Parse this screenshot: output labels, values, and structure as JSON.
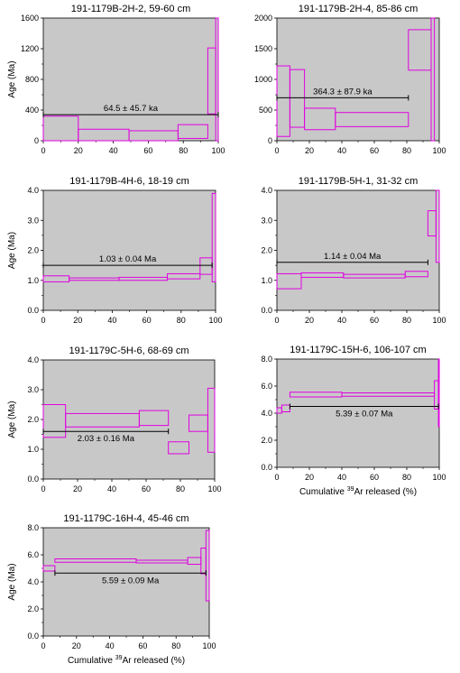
{
  "colors": {
    "panel_bg": "#c8c8c8",
    "step": "#e000e0",
    "plateau": "#000000"
  },
  "chart_data": [
    {
      "type": "step",
      "title": "191-1179B-2H-2, 59-60 cm",
      "ylabel": "Age (Ma)",
      "xlabel": "",
      "xlim": [
        0,
        100
      ],
      "ylim": [
        0,
        1600
      ],
      "xticks": [
        "0",
        "20",
        "40",
        "60",
        "80",
        "100"
      ],
      "yticks": [
        "0",
        "400",
        "800",
        "1200",
        "1600"
      ],
      "steps": [
        {
          "x0": 0,
          "x1": 20,
          "lo": 0,
          "hi": 320
        },
        {
          "x0": 20,
          "x1": 49,
          "lo": 0,
          "hi": 150
        },
        {
          "x0": 49,
          "x1": 77,
          "lo": 0,
          "hi": 130
        },
        {
          "x0": 77,
          "x1": 94,
          "lo": 30,
          "hi": 210
        },
        {
          "x0": 94,
          "x1": 98.5,
          "lo": 350,
          "hi": 1210
        },
        {
          "x0": 98.5,
          "x1": 100,
          "lo": 0,
          "hi": 1600
        }
      ],
      "plateau": {
        "label": "64.5 ± 45.7 ka",
        "value": 340,
        "x0": 0,
        "x1": 100,
        "label_pos": "above"
      }
    },
    {
      "type": "step",
      "title": "191-1179B-2H-4, 85-86 cm",
      "ylabel": "",
      "xlabel": "",
      "xlim": [
        0,
        100
      ],
      "ylim": [
        0,
        2000
      ],
      "xticks": [
        "0",
        "20",
        "40",
        "60",
        "80",
        "100"
      ],
      "yticks": [
        "0",
        "500",
        "1000",
        "1500",
        "2000"
      ],
      "steps": [
        {
          "x0": 0,
          "x1": 8,
          "lo": 70,
          "hi": 1220
        },
        {
          "x0": 8,
          "x1": 17,
          "lo": 220,
          "hi": 1160
        },
        {
          "x0": 17,
          "x1": 36,
          "lo": 180,
          "hi": 530
        },
        {
          "x0": 36,
          "x1": 81,
          "lo": 230,
          "hi": 460
        },
        {
          "x0": 81,
          "x1": 95,
          "lo": 1150,
          "hi": 1810
        },
        {
          "x0": 95,
          "x1": 97,
          "lo": 0,
          "hi": 2000
        }
      ],
      "plateau": {
        "label": "364.3 ± 87.9 ka",
        "value": 700,
        "x0": 0,
        "x1": 81,
        "label_pos": "above"
      }
    },
    {
      "type": "step",
      "title": "191-1179B-4H-6, 18-19 cm",
      "ylabel": "Age (Ma)",
      "xlabel": "",
      "xlim": [
        0,
        100
      ],
      "ylim": [
        0,
        4
      ],
      "xticks": [
        "0",
        "20",
        "40",
        "60",
        "80",
        "100"
      ],
      "yticks": [
        "0.0",
        "1.0",
        "2.0",
        "3.0",
        "4.0"
      ],
      "steps": [
        {
          "x0": 0,
          "x1": 15,
          "lo": 0.95,
          "hi": 1.15
        },
        {
          "x0": 15,
          "x1": 44,
          "lo": 1.0,
          "hi": 1.08
        },
        {
          "x0": 44,
          "x1": 72,
          "lo": 1.0,
          "hi": 1.1
        },
        {
          "x0": 72,
          "x1": 91,
          "lo": 1.05,
          "hi": 1.22
        },
        {
          "x0": 91,
          "x1": 98,
          "lo": 1.2,
          "hi": 1.75
        },
        {
          "x0": 98,
          "x1": 100,
          "lo": 0.95,
          "hi": 3.9
        }
      ],
      "plateau": {
        "label": "1.03 ± 0.04 Ma",
        "value": 1.5,
        "x0": 0,
        "x1": 98,
        "label_pos": "above"
      }
    },
    {
      "type": "step",
      "title": "191-1179B-5H-1, 31-32 cm",
      "ylabel": "",
      "xlabel": "",
      "xlim": [
        0,
        100
      ],
      "ylim": [
        0,
        4
      ],
      "xticks": [
        "0",
        "20",
        "40",
        "60",
        "80",
        "100"
      ],
      "yticks": [
        "0.0",
        "1.0",
        "2.0",
        "3.0",
        "4.0"
      ],
      "steps": [
        {
          "x0": 0,
          "x1": 15,
          "lo": 0.72,
          "hi": 1.22
        },
        {
          "x0": 15,
          "x1": 41,
          "lo": 1.1,
          "hi": 1.25
        },
        {
          "x0": 41,
          "x1": 79,
          "lo": 1.08,
          "hi": 1.2
        },
        {
          "x0": 79,
          "x1": 93,
          "lo": 1.12,
          "hi": 1.3
        },
        {
          "x0": 93,
          "x1": 98,
          "lo": 2.48,
          "hi": 3.32
        },
        {
          "x0": 98,
          "x1": 100,
          "lo": 1.6,
          "hi": 4.0
        }
      ],
      "plateau": {
        "label": "1.14 ± 0.04 Ma",
        "value": 1.6,
        "x0": 0,
        "x1": 93,
        "label_pos": "above"
      }
    },
    {
      "type": "step",
      "title": "191-1179C-5H-6, 68-69 cm",
      "ylabel": "Age (Ma)",
      "xlabel": "",
      "xlim": [
        0,
        100
      ],
      "ylim": [
        0,
        4
      ],
      "xticks": [
        "0",
        "20",
        "40",
        "60",
        "80",
        "100"
      ],
      "yticks": [
        "0.0",
        "1.0",
        "2.0",
        "3.0",
        "4.0"
      ],
      "steps": [
        {
          "x0": 0,
          "x1": 13,
          "lo": 1.4,
          "hi": 2.5
        },
        {
          "x0": 13,
          "x1": 56,
          "lo": 1.75,
          "hi": 2.2
        },
        {
          "x0": 56,
          "x1": 73,
          "lo": 1.8,
          "hi": 2.3
        },
        {
          "x0": 73,
          "x1": 85,
          "lo": 0.85,
          "hi": 1.25
        },
        {
          "x0": 85,
          "x1": 96,
          "lo": 1.6,
          "hi": 2.15
        },
        {
          "x0": 96,
          "x1": 100,
          "lo": 0.9,
          "hi": 3.05
        }
      ],
      "plateau": {
        "label": "2.03 ± 0.16 Ma",
        "value": 1.6,
        "x0": 0,
        "x1": 73,
        "label_pos": "below"
      }
    },
    {
      "type": "step",
      "title": "191-1179C-15H-6, 106-107 cm",
      "ylabel": "",
      "xlabel": "Cumulative 39Ar released (%)",
      "xlim": [
        0,
        100
      ],
      "ylim": [
        0,
        8
      ],
      "xticks": [
        "0",
        "20",
        "40",
        "60",
        "80",
        "100"
      ],
      "yticks": [
        "0.0",
        "2.0",
        "4.0",
        "6.0",
        "8.0"
      ],
      "steps": [
        {
          "x0": 0,
          "x1": 3,
          "lo": 4.0,
          "hi": 4.4
        },
        {
          "x0": 3,
          "x1": 8,
          "lo": 4.1,
          "hi": 4.6
        },
        {
          "x0": 8,
          "x1": 40,
          "lo": 5.2,
          "hi": 5.55
        },
        {
          "x0": 40,
          "x1": 97,
          "lo": 5.25,
          "hi": 5.5
        },
        {
          "x0": 97,
          "x1": 99.5,
          "lo": 4.3,
          "hi": 6.4
        },
        {
          "x0": 99.5,
          "x1": 100,
          "lo": 3.0,
          "hi": 8.0
        }
      ],
      "plateau": {
        "label": "5.39 ± 0.07 Ma",
        "value": 4.5,
        "x0": 8,
        "x1": 99.5,
        "label_pos": "below"
      }
    },
    {
      "type": "step",
      "title": "191-1179C-16H-4, 45-46 cm",
      "ylabel": "Age (Ma)",
      "xlabel": "Cumulative 39Ar released (%)",
      "xlim": [
        0,
        100
      ],
      "ylim": [
        0,
        8
      ],
      "xticks": [
        "0",
        "20",
        "40",
        "60",
        "80",
        "100"
      ],
      "yticks": [
        "0.0",
        "2.0",
        "4.0",
        "6.0",
        "8.0"
      ],
      "steps": [
        {
          "x0": 0,
          "x1": 7,
          "lo": 4.8,
          "hi": 5.2
        },
        {
          "x0": 7,
          "x1": 56,
          "lo": 5.45,
          "hi": 5.7
        },
        {
          "x0": 56,
          "x1": 87,
          "lo": 5.4,
          "hi": 5.6
        },
        {
          "x0": 87,
          "x1": 95,
          "lo": 5.3,
          "hi": 5.8
        },
        {
          "x0": 95,
          "x1": 98,
          "lo": 4.6,
          "hi": 6.5
        },
        {
          "x0": 98,
          "x1": 100,
          "lo": 2.6,
          "hi": 7.8
        }
      ],
      "plateau": {
        "label": "5.59 ± 0.09 Ma",
        "value": 4.65,
        "x0": 7,
        "x1": 98,
        "label_pos": "below"
      }
    }
  ]
}
